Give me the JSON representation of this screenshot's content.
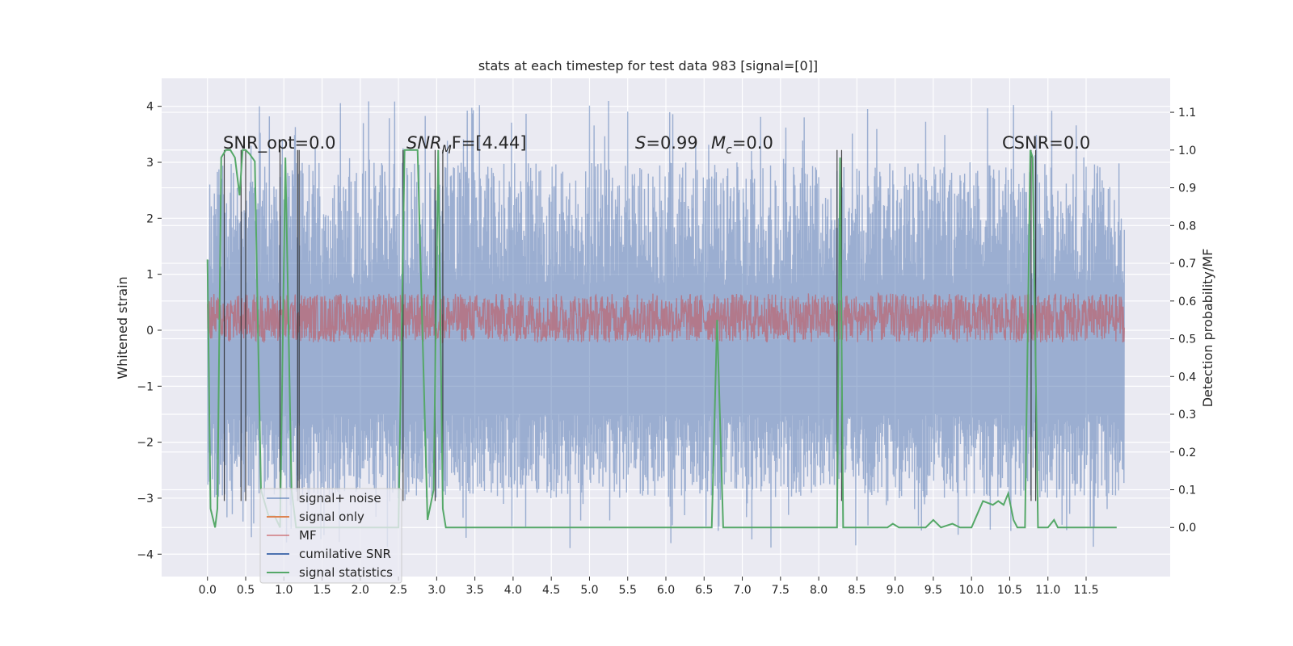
{
  "chart_data": {
    "type": "line",
    "title": "stats at each timestep for test data 983 [signal=[0]]",
    "ylabel_left": "Whitened strain",
    "ylabel_right": "Detection probability/MF",
    "xlim": [
      -0.6,
      12.6
    ],
    "ylim_left": [
      -4.4,
      4.5
    ],
    "ylim_right": [
      -0.13,
      1.19
    ],
    "x_ticks": [
      0.0,
      0.5,
      1.0,
      1.5,
      2.0,
      2.5,
      3.0,
      3.5,
      4.0,
      4.5,
      5.0,
      5.5,
      6.0,
      6.5,
      7.0,
      7.5,
      8.0,
      8.5,
      9.0,
      9.5,
      10.0,
      10.5,
      11.0,
      11.5
    ],
    "x_tick_labels": [
      "0.0",
      "0.5",
      "1.0",
      "1.5",
      "2.0",
      "2.5",
      "3.0",
      "3.5",
      "4.0",
      "4.5",
      "5.0",
      "5.5",
      "6.0",
      "6.5",
      "7.0",
      "7.5",
      "8.0",
      "8.5",
      "9.0",
      "9.5",
      "10.0",
      "10.5",
      "11.0",
      "11.5"
    ],
    "y_left_ticks": [
      -4,
      -3,
      -2,
      -1,
      0,
      1,
      2,
      3,
      4
    ],
    "y_left_tick_labels": [
      "−4",
      "−3",
      "−2",
      "−1",
      "0",
      "1",
      "2",
      "3",
      "4"
    ],
    "y_right_ticks": [
      0.0,
      0.1,
      0.2,
      0.3,
      0.4,
      0.5,
      0.6,
      0.7,
      0.8,
      0.9,
      1.0,
      1.1
    ],
    "y_right_tick_labels": [
      "0.0",
      "0.1",
      "0.2",
      "0.3",
      "0.4",
      "0.5",
      "0.6",
      "0.7",
      "0.8",
      "0.9",
      "1.0",
      "1.1"
    ],
    "grid": true,
    "legend_placement": "lower-left",
    "annotations": {
      "snr_opt": "SNR_opt=0.0",
      "snr_mf_prefix": "SNR",
      "snr_mf_sub": "M",
      "snr_mf_suffix": "F=[4.44]",
      "s_label": "S",
      "s_value": "=0.99",
      "mc_label": "M",
      "mc_sub": "c",
      "mc_value": "=0.0",
      "csnr": "CSNR=0.0"
    },
    "series": [
      {
        "name": "signal+ noise",
        "color": "#4c72b0",
        "opacity": 0.5,
        "axis": "left",
        "x_range": [
          0.0,
          12.0
        ],
        "envelope": [
          -3.0,
          3.3
        ],
        "peak_max": 4.1,
        "peak_min": -3.9
      },
      {
        "name": "signal only",
        "color": "#dd8452",
        "axis": "left",
        "values": "zero"
      },
      {
        "name": "MF",
        "color": "#c44e52",
        "opacity": 0.55,
        "axis": "right",
        "x_range": [
          0.0,
          12.0
        ],
        "band": [
          0.49,
          0.62
        ]
      },
      {
        "name": "cumilative SNR",
        "color": "#4c72b0",
        "axis": "left",
        "values": "hidden"
      },
      {
        "name": "signal statistics",
        "color": "#55a868",
        "axis": "right",
        "x": [
          0.0,
          0.04,
          0.1,
          0.13,
          0.18,
          0.24,
          0.3,
          0.36,
          0.42,
          0.46,
          0.5,
          0.55,
          0.62,
          0.7,
          0.8,
          0.88,
          0.95,
          1.02,
          1.1,
          1.16,
          1.22,
          1.3,
          1.5,
          2.0,
          2.5,
          2.58,
          2.65,
          2.75,
          2.88,
          2.96,
          3.02,
          3.08,
          3.12,
          3.18,
          3.3,
          4.0,
          5.0,
          6.0,
          6.6,
          6.67,
          6.75,
          6.85,
          7.5,
          8.0,
          8.24,
          8.28,
          8.32,
          8.38,
          8.9,
          8.97,
          9.05,
          9.4,
          9.5,
          9.6,
          9.75,
          9.85,
          10.0,
          10.15,
          10.28,
          10.35,
          10.42,
          10.48,
          10.55,
          10.6,
          10.7,
          10.77,
          10.8,
          10.87,
          10.9,
          11.0,
          11.08,
          11.13,
          11.2,
          11.9
        ],
        "y": [
          0.71,
          0.05,
          0.0,
          0.05,
          0.98,
          1.0,
          1.0,
          0.98,
          0.88,
          1.0,
          1.0,
          0.99,
          0.97,
          0.1,
          0.03,
          0.03,
          0.0,
          0.98,
          0.1,
          0.0,
          0.0,
          0.0,
          0.0,
          0.0,
          0.0,
          1.0,
          1.0,
          1.0,
          0.02,
          0.1,
          1.0,
          0.05,
          0.0,
          0.0,
          0.0,
          0.0,
          0.0,
          0.0,
          0.0,
          0.55,
          0.0,
          0.0,
          0.0,
          0.0,
          0.0,
          0.98,
          0.0,
          0.0,
          0.0,
          0.01,
          0.0,
          0.0,
          0.02,
          0.0,
          0.01,
          0.0,
          0.0,
          0.07,
          0.06,
          0.07,
          0.06,
          0.09,
          0.02,
          0.0,
          0.0,
          1.0,
          0.98,
          0.0,
          0.0,
          0.0,
          0.02,
          0.0,
          0.0,
          0.0
        ]
      }
    ],
    "vertical_lines": {
      "color": "#262626",
      "x": [
        0.22,
        0.44,
        0.5,
        0.95,
        1.18,
        1.2,
        2.56,
        2.98,
        3.08,
        8.24,
        8.3,
        10.78,
        10.84
      ],
      "y_range": [
        -3.05,
        3.22
      ]
    }
  }
}
